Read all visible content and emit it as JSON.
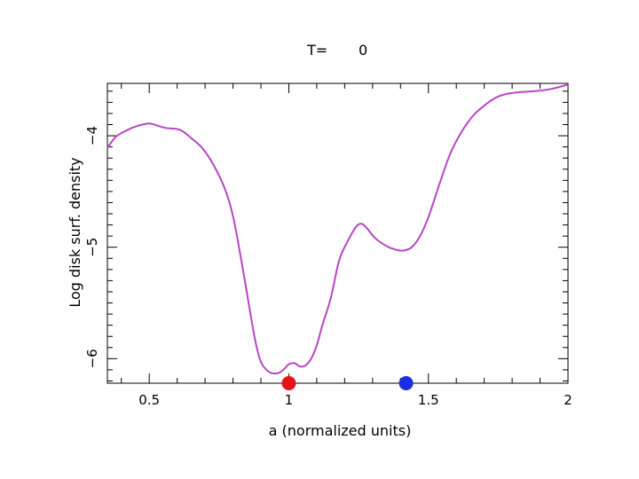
{
  "chart_data": {
    "type": "line",
    "title_prefix": "T=",
    "title_value": "0",
    "xlabel": "a (normalized units)",
    "ylabel": "Log disk surf. density",
    "xlim": [
      0.35,
      2.0
    ],
    "ylim": [
      -6.22,
      -3.53
    ],
    "x_ticks": [
      0.5,
      1,
      1.5,
      2
    ],
    "x_tick_labels": [
      "0.5",
      "1",
      "1.5",
      "2"
    ],
    "y_ticks": [
      -6,
      -5,
      -4
    ],
    "y_tick_labels": [
      "−6",
      "−5",
      "−4"
    ],
    "grid": false,
    "colors": {
      "line": "#b845c4",
      "marker1": "#e8121a",
      "marker2": "#1a2fe0"
    },
    "series": [
      {
        "x": [
          0.35,
          0.38,
          0.42,
          0.46,
          0.5,
          0.53,
          0.56,
          0.6,
          0.62,
          0.65,
          0.69,
          0.73,
          0.77,
          0.8,
          0.83,
          0.86,
          0.88,
          0.9,
          0.93,
          0.96,
          0.98,
          1.0,
          1.02,
          1.04,
          1.06,
          1.08,
          1.1,
          1.12,
          1.15,
          1.18,
          1.21,
          1.24,
          1.26,
          1.28,
          1.31,
          1.35,
          1.38,
          1.41,
          1.44,
          1.47,
          1.5,
          1.54,
          1.58,
          1.62,
          1.66,
          1.7,
          1.74,
          1.77,
          1.82,
          1.88,
          1.94,
          2.0
        ],
        "y": [
          -4.11,
          -4.01,
          -3.95,
          -3.91,
          -3.89,
          -3.91,
          -3.93,
          -3.94,
          -3.96,
          -4.02,
          -4.11,
          -4.26,
          -4.47,
          -4.72,
          -5.12,
          -5.56,
          -5.84,
          -6.03,
          -6.12,
          -6.13,
          -6.1,
          -6.05,
          -6.04,
          -6.07,
          -6.06,
          -6.0,
          -5.88,
          -5.7,
          -5.46,
          -5.12,
          -4.95,
          -4.82,
          -4.79,
          -4.83,
          -4.92,
          -4.99,
          -5.02,
          -5.03,
          -5.0,
          -4.9,
          -4.73,
          -4.43,
          -4.15,
          -3.96,
          -3.82,
          -3.73,
          -3.66,
          -3.63,
          -3.61,
          -3.6,
          -3.58,
          -3.54
        ]
      }
    ],
    "markers": [
      {
        "x": 1.0,
        "y": -6.22
      },
      {
        "x": 1.42,
        "y": -6.22
      }
    ]
  }
}
